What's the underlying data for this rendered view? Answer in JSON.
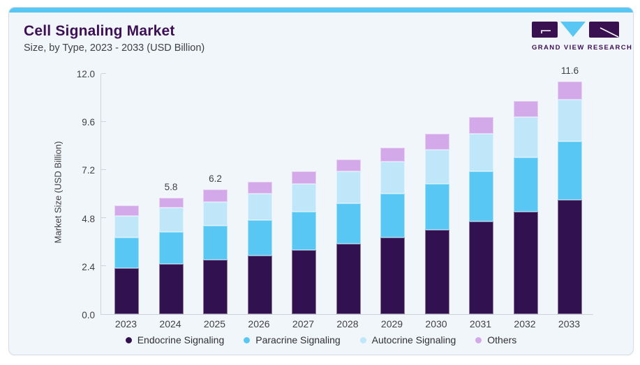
{
  "header": {
    "title": "Cell Signaling Market",
    "subtitle": "Size, by Type, 2023 - 2033 (USD Billion)",
    "logo_text": "GRAND VIEW RESEARCH"
  },
  "theme": {
    "card_bg": "#f1f6fa",
    "top_strip": "#58c7f3",
    "title_color": "#3d1056",
    "text_color": "#414042",
    "axis_color": "#ccd4da"
  },
  "chart_data": {
    "type": "bar",
    "stacked": true,
    "title": "Cell Signaling Market Size, by Type, 2023 - 2033 (USD Billion)",
    "xlabel": "",
    "ylabel": "Market Size (USD Billion)",
    "ylim": [
      0,
      12
    ],
    "y_ticks": [
      "0.0",
      "2.4",
      "4.8",
      "7.2",
      "9.6",
      "12.0"
    ],
    "grid": false,
    "legend_position": "bottom",
    "categories": [
      "2023",
      "2024",
      "2025",
      "2026",
      "2027",
      "2028",
      "2029",
      "2030",
      "2031",
      "2032",
      "2033"
    ],
    "series": [
      {
        "name": "Endocrine Signaling",
        "color": "#321150",
        "values": [
          2.3,
          2.5,
          2.7,
          2.9,
          3.2,
          3.5,
          3.8,
          4.2,
          4.6,
          5.1,
          5.7
        ]
      },
      {
        "name": "Paracrine Signaling",
        "color": "#59c7f3",
        "values": [
          1.5,
          1.6,
          1.7,
          1.8,
          1.9,
          2.0,
          2.2,
          2.3,
          2.5,
          2.7,
          2.9
        ]
      },
      {
        "name": "Autocrine Signaling",
        "color": "#bfe6f9",
        "values": [
          1.1,
          1.2,
          1.2,
          1.3,
          1.4,
          1.6,
          1.6,
          1.7,
          1.9,
          2.0,
          2.1
        ]
      },
      {
        "name": "Others",
        "color": "#d4a9e9",
        "values": [
          0.5,
          0.5,
          0.6,
          0.6,
          0.6,
          0.6,
          0.7,
          0.8,
          0.8,
          0.8,
          0.9
        ]
      }
    ],
    "totals": [
      5.4,
      5.8,
      6.2,
      6.6,
      7.1,
      7.7,
      8.3,
      9.0,
      9.8,
      10.6,
      11.6
    ],
    "bar_labels": [
      "",
      "5.8",
      "6.2",
      "",
      "",
      "",
      "",
      "",
      "",
      "",
      "11.6"
    ]
  }
}
